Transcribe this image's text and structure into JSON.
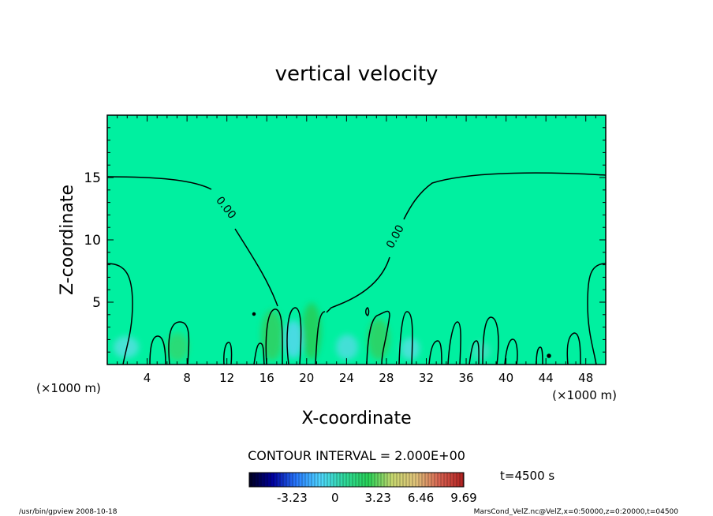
{
  "chart_data": {
    "type": "heatmap",
    "title": "vertical velocity",
    "xlabel": "X-coordinate",
    "ylabel": "Z-coordinate",
    "x_unit_left": "(×1000 m)",
    "x_unit_right": "(×1000 m)",
    "xlim": [
      0,
      50
    ],
    "ylim": [
      0,
      20
    ],
    "xticks": [
      "4",
      "8",
      "12",
      "16",
      "20",
      "24",
      "28",
      "32",
      "36",
      "40",
      "44",
      "48"
    ],
    "yticks": [
      "5",
      "10",
      "15"
    ],
    "contour_labels": [
      "0.00",
      "0.00"
    ],
    "contour_interval_text": "CONTOUR INTERVAL = 2.000E+00",
    "time_text": "t=4500 s",
    "colorbar": {
      "min": -6.46,
      "max": 9.69,
      "tick_labels": [
        "-3.23",
        "0",
        "3.23",
        "6.46",
        "9.69"
      ],
      "colors": [
        "#000020",
        "#0000a0",
        "#2a7cff",
        "#4fd8ff",
        "#2fd99a",
        "#28d257",
        "#c8d870",
        "#e0c27a",
        "#d86050",
        "#b02020"
      ]
    },
    "field_background": "#00f0a0",
    "footer_left": "/usr/bin/gpview   2008-10-18",
    "footer_right": "MarsCond_VelZ.nc@VelZ,x=0:50000,z=0:20000,t=04500"
  }
}
